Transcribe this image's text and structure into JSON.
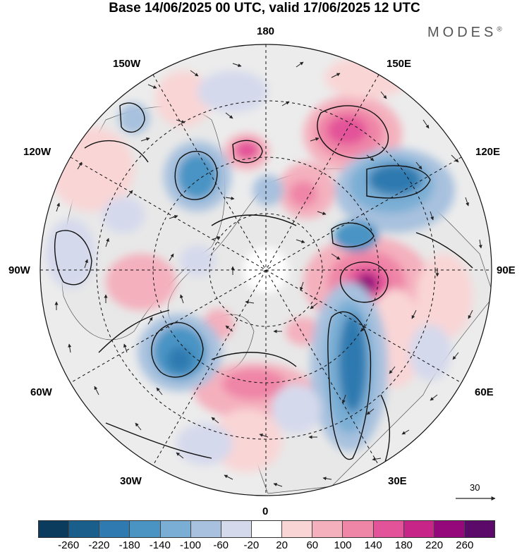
{
  "header": {
    "title": "Base 14/06/2025 00 UTC, valid 17/06/2025 12 UTC",
    "brand": "MODES",
    "brand_mark": "®"
  },
  "map": {
    "projection": "north-polar-stereographic",
    "longitude_labels": {
      "top": "180",
      "bottom": "0",
      "left": "90W",
      "right": "90E",
      "upper_left": "150W",
      "upper_right": "150E",
      "mid_left": "120W",
      "mid_right": "120E",
      "lower_left_mid": "60W",
      "lower_right_mid": "60E",
      "lower_left": "30W",
      "lower_right": "30E"
    },
    "wind_reference_value": "30"
  },
  "colorbar": {
    "colors": [
      "#0b3c5d",
      "#1a5e8c",
      "#2f7ab0",
      "#4a94c4",
      "#7aaed4",
      "#a7c1de",
      "#d5d9ec",
      "#ffffff",
      "#f9d5d6",
      "#f4b0bd",
      "#ef85a7",
      "#e35399",
      "#c82588",
      "#94087b",
      "#5b0a6a"
    ],
    "tick_labels": [
      "-260",
      "-220",
      "-180",
      "-140",
      "-100",
      "-60",
      "-20",
      "20",
      "60",
      "100",
      "140",
      "180",
      "220",
      "260"
    ]
  }
}
